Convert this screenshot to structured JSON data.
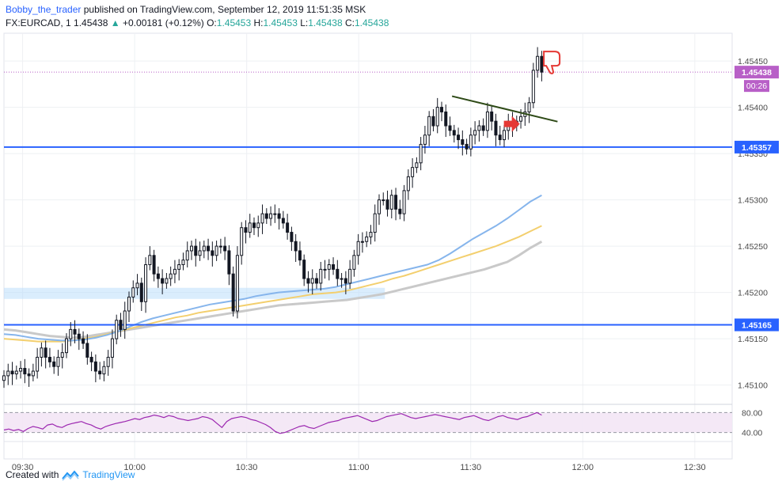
{
  "header": {
    "username": "Bobby_the_trader",
    "published": "published on TradingView.com, September 12, 2019 11:51:35 MSK",
    "symbol": "FX:EURCAD, 1",
    "last": "1.45438",
    "change_arrow": "▲",
    "change": "+0.00181 (+0.12%)",
    "o_label": "O:",
    "o_value": "1.45453",
    "h_label": "H:",
    "h_value": "1.45453",
    "l_label": "L:",
    "l_value": "1.45438",
    "c_label": "C:",
    "c_value": "1.45438"
  },
  "footer": {
    "created_with": "Created with",
    "brand": "TradingView",
    "logo_icon": "tradingview-logo-icon"
  },
  "colors": {
    "bullish": "#26a69a",
    "candle": "#131722",
    "level_line": "#2962ff",
    "price_badge": "#b85fc7",
    "ma_fast": "#86b5ec",
    "ma_mid": "#f3cf6e",
    "ma_slow": "#c9c9c9",
    "rsi": "#9c27b0",
    "annotation": "#e53935",
    "trendline": "#2e4a17"
  },
  "chart_data": {
    "type": "candlestick",
    "symbol": "FX:EURCAD",
    "timeframe": "1",
    "x_ticks": [
      "09:30",
      "10:00",
      "10:30",
      "11:00",
      "11:30",
      "12:00",
      "12:30"
    ],
    "y_ticks": [
      "1.45450",
      "1.45400",
      "1.45350",
      "1.45300",
      "1.45250",
      "1.45200",
      "1.45150",
      "1.45100"
    ],
    "ylim": [
      1.4508,
      1.4548
    ],
    "x_start": "09:25",
    "x_end": "12:40",
    "current_price": {
      "label": "1.45438",
      "value": 1.45438,
      "countdown": "00:26"
    },
    "levels": [
      {
        "label": "1.45357",
        "value": 1.45357
      },
      {
        "label": "1.45165",
        "value": 1.45165
      }
    ],
    "zone": {
      "from": "09:25",
      "to": "11:07",
      "low": 1.45193,
      "high": 1.45205
    },
    "closes": [
      1.4511,
      1.45115,
      1.45112,
      1.45115,
      1.45118,
      1.45112,
      1.4511,
      1.45115,
      1.4513,
      1.4514,
      1.4513,
      1.45125,
      1.4512,
      1.4513,
      1.45135,
      1.4515,
      1.4516,
      1.45155,
      1.4515,
      1.45145,
      1.4513,
      1.45125,
      1.45115,
      1.45112,
      1.4512,
      1.4513,
      1.4515,
      1.4517,
      1.4516,
      1.4518,
      1.45195,
      1.45205,
      1.4521,
      1.4519,
      1.4523,
      1.4524,
      1.4522,
      1.45215,
      1.4521,
      1.45215,
      1.4522,
      1.45225,
      1.4523,
      1.45235,
      1.45245,
      1.4525,
      1.4524,
      1.45245,
      1.4525,
      1.45245,
      1.4524,
      1.4525,
      1.4525,
      1.45245,
      1.4522,
      1.4518,
      1.4524,
      1.4527,
      1.45265,
      1.45275,
      1.4527,
      1.45275,
      1.45285,
      1.4528,
      1.45285,
      1.45285,
      1.4528,
      1.45275,
      1.45265,
      1.45255,
      1.45245,
      1.45235,
      1.45215,
      1.4521,
      1.45215,
      1.4521,
      1.45225,
      1.45225,
      1.4523,
      1.45225,
      1.45215,
      1.45215,
      1.4521,
      1.45225,
      1.4524,
      1.45255,
      1.45255,
      1.4526,
      1.45265,
      1.45285,
      1.453,
      1.453,
      1.4529,
      1.45305,
      1.4529,
      1.45285,
      1.4531,
      1.45325,
      1.45335,
      1.4534,
      1.4536,
      1.4537,
      1.4539,
      1.4538,
      1.454,
      1.45395,
      1.4538,
      1.45375,
      1.4537,
      1.45365,
      1.4536,
      1.45355,
      1.4537,
      1.45375,
      1.4538,
      1.45375,
      1.45395,
      1.45385,
      1.4537,
      1.45365,
      1.45375,
      1.45385,
      1.4538,
      1.45385,
      1.4539,
      1.45395,
      1.45405,
      1.4544,
      1.45455,
      1.45438
    ],
    "ma_fast": [
      1.45155,
      1.45154,
      1.45152,
      1.4515,
      1.45149,
      1.45148,
      1.45148,
      1.45149,
      1.45151,
      1.45154,
      1.45158,
      1.45163,
      1.45168,
      1.45172,
      1.45175,
      1.45178,
      1.45181,
      1.45184,
      1.45187,
      1.45189,
      1.45191,
      1.45193,
      1.45196,
      1.45198,
      1.452,
      1.45201,
      1.45202,
      1.45203,
      1.45204,
      1.45206,
      1.45209,
      1.45212,
      1.45215,
      1.45218,
      1.45221,
      1.45224,
      1.45227,
      1.4523,
      1.45235,
      1.45242,
      1.4525,
      1.45258,
      1.45265,
      1.45272,
      1.4528,
      1.45289,
      1.45298,
      1.45305
    ],
    "ma_mid": [
      1.4515,
      1.45149,
      1.45148,
      1.45147,
      1.45147,
      1.45147,
      1.45148,
      1.4515,
      1.45152,
      1.45155,
      1.45158,
      1.45161,
      1.45164,
      1.45167,
      1.4517,
      1.45173,
      1.45175,
      1.45178,
      1.4518,
      1.45182,
      1.45184,
      1.45186,
      1.45188,
      1.4519,
      1.45192,
      1.45194,
      1.45196,
      1.45198,
      1.45199,
      1.452,
      1.45202,
      1.45205,
      1.45208,
      1.45211,
      1.45215,
      1.45218,
      1.45222,
      1.45226,
      1.4523,
      1.45234,
      1.45238,
      1.45242,
      1.45246,
      1.4525,
      1.45255,
      1.4526,
      1.45266,
      1.45272
    ],
    "ma_slow": [
      1.4516,
      1.45159,
      1.45157,
      1.45155,
      1.45153,
      1.45152,
      1.45151,
      1.45152,
      1.45154,
      1.45156,
      1.45158,
      1.4516,
      1.45162,
      1.45164,
      1.45166,
      1.45168,
      1.4517,
      1.45172,
      1.45174,
      1.45176,
      1.45178,
      1.4518,
      1.45182,
      1.45184,
      1.45186,
      1.45187,
      1.45188,
      1.45189,
      1.4519,
      1.45191,
      1.45192,
      1.45194,
      1.45196,
      1.45198,
      1.45201,
      1.45204,
      1.45207,
      1.4521,
      1.45213,
      1.45216,
      1.45219,
      1.45222,
      1.45225,
      1.45229,
      1.45233,
      1.4524,
      1.45248,
      1.45255
    ],
    "trendline": {
      "from": {
        "t": "11:25",
        "price": 1.45412
      },
      "to": {
        "t": "11:49",
        "price": 1.45382
      }
    },
    "rsi": {
      "y_ticks": [
        "80.00",
        "40.00"
      ],
      "ylim": [
        25,
        95
      ],
      "band": [
        40,
        80
      ],
      "values": [
        45,
        47,
        44,
        46,
        42,
        48,
        52,
        50,
        47,
        55,
        57,
        52,
        50,
        55,
        58,
        60,
        62,
        58,
        55,
        50,
        47,
        52,
        55,
        58,
        60,
        62,
        65,
        68,
        66,
        70,
        72,
        75,
        73,
        70,
        74,
        72,
        68,
        66,
        64,
        66,
        68,
        72,
        70,
        66,
        58,
        50,
        62,
        68,
        70,
        72,
        70,
        66,
        64,
        60,
        56,
        50,
        42,
        38,
        40,
        44,
        48,
        52,
        54,
        50,
        48,
        52,
        56,
        60,
        62,
        64,
        68,
        70,
        72,
        74,
        70,
        66,
        62,
        64,
        68,
        72,
        74,
        76,
        78,
        74,
        70,
        68,
        70,
        72,
        74,
        76,
        74,
        72,
        70,
        68,
        66,
        70,
        72,
        74,
        70,
        66,
        64,
        68,
        72,
        74,
        70,
        68,
        66,
        70,
        72,
        76,
        80,
        75
      ]
    }
  }
}
